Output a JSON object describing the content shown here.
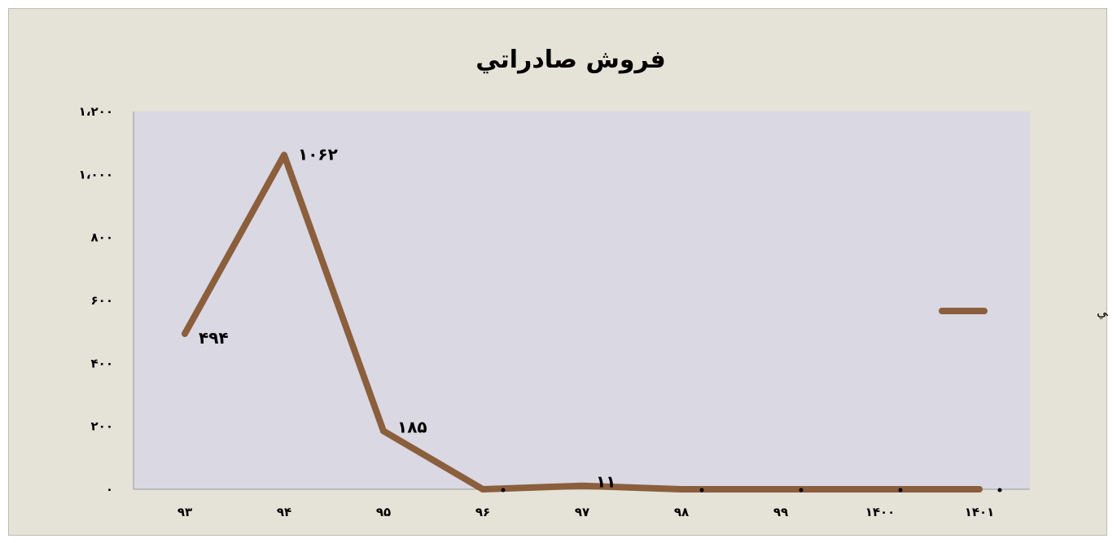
{
  "chart_data": {
    "type": "line",
    "title": "فروش صادراتي",
    "categories": [
      "۹۳",
      "۹۴",
      "۹۵",
      "۹۶",
      "۹۷",
      "۹۸",
      "۹۹",
      "۱۴۰۰",
      "۱۴۰۱"
    ],
    "series": [
      {
        "name": "فروش صادراتي",
        "color": "#8b5e3c",
        "values": [
          494,
          1062,
          185,
          0,
          11,
          0,
          0,
          0,
          0
        ],
        "data_labels": [
          "۴۹۴",
          "۱۰۶۲",
          "۱۸۵",
          "۰",
          "۱۱",
          "۰",
          "۰",
          "۰",
          "۰"
        ]
      }
    ],
    "ylim": [
      0,
      1200
    ],
    "yticks": [
      0,
      200,
      400,
      600,
      800,
      1000,
      1200
    ],
    "ytick_labels": [
      "۰",
      "۲۰۰",
      "۴۰۰",
      "۶۰۰",
      "۸۰۰",
      "۱،۰۰۰",
      "۱،۲۰۰"
    ],
    "grid": false,
    "legend_position": "right",
    "plot_background": "#d9d8e3",
    "frame_background": "#e5e3d8"
  }
}
